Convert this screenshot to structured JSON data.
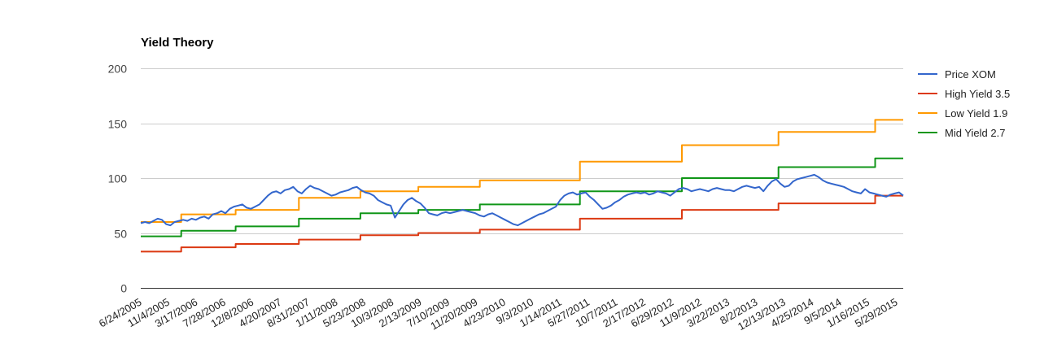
{
  "chart_data": {
    "type": "line",
    "title": "Yield Theory",
    "xlabel": "",
    "ylabel": "",
    "ylim": [
      0,
      200
    ],
    "y_ticks": [
      0,
      50,
      100,
      150,
      200
    ],
    "grid": true,
    "legend_position": "right",
    "x_tick_labels": [
      "6/24/2005",
      "11/4/2005",
      "3/17/2006",
      "7/28/2006",
      "12/8/2006",
      "4/20/2007",
      "8/31/2007",
      "1/11/2008",
      "5/23/2008",
      "10/3/2008",
      "2/13/2009",
      "7/10/2009",
      "11/20/2009",
      "4/23/2010",
      "9/3/2010",
      "1/14/2011",
      "5/27/2011",
      "10/7/2011",
      "2/17/2012",
      "6/29/2012",
      "11/9/2012",
      "3/22/2013",
      "8/2/2013",
      "12/13/2013",
      "4/25/2014",
      "9/5/2014",
      "1/16/2015",
      "5/29/2015"
    ],
    "series": [
      {
        "name": "Price XOM",
        "color": "#3366cc",
        "values": [
          59,
          60,
          59,
          61,
          63,
          62,
          58,
          57,
          60,
          61,
          62,
          61,
          63,
          62,
          64,
          65,
          63,
          67,
          68,
          70,
          68,
          72,
          74,
          75,
          76,
          73,
          72,
          74,
          76,
          80,
          84,
          87,
          88,
          86,
          89,
          90,
          92,
          88,
          86,
          90,
          93,
          91,
          90,
          88,
          86,
          84,
          85,
          87,
          88,
          89,
          91,
          92,
          89,
          87,
          86,
          84,
          80,
          78,
          76,
          75,
          64,
          70,
          76,
          80,
          82,
          79,
          77,
          73,
          68,
          67,
          66,
          68,
          69,
          68,
          69,
          70,
          71,
          70,
          69,
          68,
          66,
          65,
          67,
          68,
          66,
          64,
          62,
          60,
          58,
          57,
          59,
          61,
          63,
          65,
          67,
          68,
          70,
          72,
          74,
          80,
          84,
          86,
          87,
          85,
          86,
          87,
          83,
          80,
          76,
          72,
          73,
          75,
          78,
          80,
          83,
          85,
          86,
          87,
          86,
          87,
          85,
          86,
          88,
          87,
          86,
          84,
          87,
          90,
          91,
          90,
          88,
          89,
          90,
          89,
          88,
          90,
          91,
          90,
          89,
          89,
          88,
          90,
          92,
          93,
          92,
          91,
          92,
          88,
          93,
          97,
          99,
          95,
          92,
          93,
          97,
          99,
          100,
          101,
          102,
          103,
          101,
          98,
          96,
          95,
          94,
          93,
          92,
          90,
          88,
          87,
          86,
          90,
          87,
          86,
          85,
          84,
          83,
          85,
          86,
          87,
          84
        ]
      },
      {
        "name": "High Yield 3.5",
        "color": "#dc3912",
        "steps": [
          [
            0,
            33
          ],
          [
            23,
            37
          ],
          [
            54,
            40
          ],
          [
            90,
            44
          ],
          [
            125,
            48
          ],
          [
            158,
            50
          ],
          [
            193,
            53
          ],
          [
            250,
            63
          ],
          [
            308,
            71
          ],
          [
            363,
            77
          ],
          [
            418,
            84
          ],
          [
            434,
            84
          ]
        ]
      },
      {
        "name": "Low Yield 1.9",
        "color": "#ff9900",
        "steps": [
          [
            0,
            60
          ],
          [
            23,
            67
          ],
          [
            54,
            71
          ],
          [
            90,
            82
          ],
          [
            125,
            88
          ],
          [
            158,
            92
          ],
          [
            193,
            98
          ],
          [
            250,
            115
          ],
          [
            308,
            130
          ],
          [
            363,
            142
          ],
          [
            418,
            153
          ],
          [
            434,
            153
          ]
        ]
      },
      {
        "name": "Mid Yield 2.7",
        "color": "#109618",
        "steps": [
          [
            0,
            47
          ],
          [
            23,
            52
          ],
          [
            54,
            56
          ],
          [
            90,
            63
          ],
          [
            125,
            68
          ],
          [
            158,
            71
          ],
          [
            193,
            76
          ],
          [
            250,
            88
          ],
          [
            308,
            100
          ],
          [
            363,
            110
          ],
          [
            418,
            118
          ],
          [
            434,
            118
          ]
        ]
      }
    ],
    "x_count": 434
  }
}
